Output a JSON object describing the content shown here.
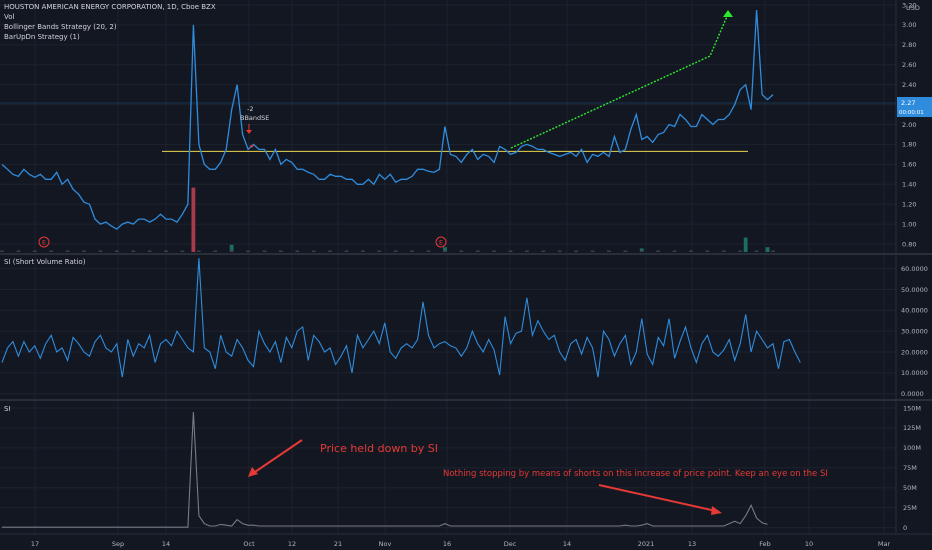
{
  "header": {
    "symbol_line": "HOUSTON AMERICAN ENERGY CORPORATION, 1D, Cboe BZX",
    "studies": [
      "Vol",
      "Bollinger Bands Strategy (20, 2)",
      "BarUpDn Strategy (1)"
    ]
  },
  "price_axis": {
    "currency": "USD",
    "ticks": [
      "3.20",
      "3.00",
      "2.80",
      "2.60",
      "2.40",
      "2.20",
      "2.00",
      "1.80",
      "1.60",
      "1.40",
      "1.20",
      "1.00",
      "0.80"
    ],
    "last_price_label": "2.27",
    "last_price_sub": "00:00:01"
  },
  "price_annotations": {
    "signal_qty": "-2",
    "signal_name": "BBandSE",
    "earnings_marker": "E"
  },
  "panels": {
    "si_ratio": {
      "title": "SI (Short Volume Ratio)",
      "ticks": [
        "60.0000",
        "50.0000",
        "40.0000",
        "30.0000",
        "20.0000",
        "10.0000",
        "0.0000"
      ]
    },
    "si": {
      "title": "SI",
      "ticks": [
        "150M",
        "125M",
        "100M",
        "75M",
        "50M",
        "25M",
        "0"
      ]
    }
  },
  "notes": {
    "note1": "Price held down by SI",
    "note2": "Nothing stopping by means of shorts on this increase of price point. Keep an eye on the SI"
  },
  "time_axis": [
    "17",
    "Sep",
    "14",
    "Oct",
    "12",
    "21",
    "Nov",
    "16",
    "Dec",
    "14",
    "2021",
    "13",
    "Feb",
    "10",
    "Mar"
  ],
  "colors": {
    "background": "#131722",
    "price_line": "#2f8cdc",
    "si_line": "#787b86",
    "yellow_level": "#e8d54d",
    "green_trend": "#2ee82e",
    "red_note": "#e53935",
    "volume_down": "#a83b48",
    "volume_up": "#1d6e62"
  },
  "chart_data": {
    "type": "line",
    "price": [
      1.6,
      1.55,
      1.5,
      1.48,
      1.55,
      1.5,
      1.47,
      1.5,
      1.45,
      1.45,
      1.52,
      1.4,
      1.45,
      1.35,
      1.3,
      1.22,
      1.2,
      1.05,
      1.0,
      1.02,
      0.98,
      0.95,
      1.0,
      1.02,
      1.0,
      1.05,
      1.05,
      1.02,
      1.05,
      1.1,
      1.05,
      1.05,
      1.02,
      1.1,
      1.2,
      3.0,
      1.8,
      1.6,
      1.55,
      1.55,
      1.62,
      1.75,
      2.15,
      2.4,
      1.9,
      1.75,
      1.8,
      1.75,
      1.75,
      1.65,
      1.75,
      1.6,
      1.65,
      1.62,
      1.55,
      1.55,
      1.52,
      1.5,
      1.45,
      1.45,
      1.5,
      1.48,
      1.48,
      1.45,
      1.45,
      1.4,
      1.4,
      1.45,
      1.4,
      1.5,
      1.45,
      1.5,
      1.42,
      1.45,
      1.45,
      1.48,
      1.55,
      1.55,
      1.53,
      1.52,
      1.55,
      1.98,
      1.7,
      1.68,
      1.62,
      1.7,
      1.75,
      1.65,
      1.7,
      1.68,
      1.62,
      1.78,
      1.75,
      1.7,
      1.72,
      1.78,
      1.8,
      1.78,
      1.75,
      1.75,
      1.72,
      1.7,
      1.68,
      1.7,
      1.72,
      1.68,
      1.75,
      1.62,
      1.7,
      1.68,
      1.72,
      1.68,
      1.88,
      1.72,
      1.75,
      1.95,
      2.1,
      1.85,
      1.88,
      1.82,
      1.9,
      1.92,
      2.0,
      1.98,
      2.1,
      2.05,
      1.98,
      1.98,
      2.1,
      2.05,
      2.0,
      2.05,
      2.05,
      2.1,
      2.2,
      2.35,
      2.4,
      2.15,
      3.15,
      2.3,
      2.25,
      2.3
    ],
    "si_ratio": [
      15,
      22,
      25,
      18,
      25,
      20,
      23,
      17,
      24,
      28,
      20,
      22,
      16,
      27,
      24,
      20,
      18,
      25,
      28,
      22,
      20,
      24,
      8,
      26,
      18,
      24,
      22,
      28,
      15,
      24,
      26,
      23,
      30,
      26,
      22,
      20,
      65,
      22,
      20,
      12,
      28,
      20,
      18,
      26,
      22,
      16,
      13,
      30,
      24,
      20,
      25,
      15,
      27,
      22,
      30,
      32,
      16,
      28,
      25,
      20,
      22,
      14,
      18,
      23,
      10,
      28,
      22,
      26,
      30,
      24,
      34,
      20,
      17,
      22,
      24,
      22,
      26,
      44,
      28,
      22,
      24,
      25,
      23,
      22,
      18,
      22,
      30,
      24,
      20,
      26,
      21,
      9,
      37,
      24,
      29,
      30,
      46,
      28,
      35,
      30,
      26,
      28,
      20,
      16,
      24,
      26,
      19,
      27,
      22,
      8,
      30,
      26,
      18,
      24,
      28,
      14,
      20,
      36,
      19,
      14,
      27,
      23,
      36,
      17,
      25,
      32,
      22,
      15,
      24,
      28,
      20,
      18,
      21,
      26,
      16,
      24,
      38,
      20,
      30,
      26,
      22,
      24,
      12,
      25,
      26,
      20,
      15
    ],
    "si": [
      0.5,
      0.5,
      0.5,
      0.5,
      0.5,
      0.5,
      0.5,
      0.5,
      0.5,
      0.5,
      0.5,
      0.5,
      0.5,
      0.5,
      0.5,
      0.5,
      0.5,
      0.5,
      0.5,
      0.5,
      0.5,
      0.5,
      0.5,
      0.5,
      0.5,
      0.5,
      0.5,
      0.5,
      0.5,
      0.5,
      0.5,
      0.5,
      0.5,
      0.5,
      0.5,
      145,
      15,
      5,
      2,
      2,
      4,
      3,
      2,
      10,
      5,
      3,
      3,
      2,
      2,
      2,
      2,
      2,
      2,
      2,
      2,
      2,
      2,
      2,
      2,
      2,
      2,
      2,
      2,
      2,
      2,
      2,
      2,
      2,
      2,
      2,
      2,
      2,
      2,
      2,
      2,
      2,
      2,
      2,
      2,
      2,
      2,
      5,
      2,
      2,
      2,
      2,
      2,
      2,
      2,
      2,
      2,
      2,
      2,
      2,
      2,
      2,
      2,
      2,
      2,
      2,
      2,
      2,
      2,
      2,
      2,
      2,
      2,
      2,
      2,
      2,
      2,
      2,
      2,
      2,
      3,
      2,
      2,
      3,
      5,
      2,
      2,
      2,
      2,
      2,
      2,
      2,
      2,
      2,
      2,
      2,
      2,
      2,
      2,
      5,
      8,
      5,
      15,
      28,
      12,
      6,
      4
    ],
    "volume_down": [
      [
        35,
        28
      ]
    ],
    "volume_up": [
      [
        42,
        6
      ],
      [
        81,
        4
      ],
      [
        117,
        3
      ],
      [
        136,
        12
      ],
      [
        140,
        4
      ]
    ],
    "price_level": 1.73,
    "price_ylim": [
      0.7,
      3.25
    ],
    "si_ratio_ylim": [
      -3,
      67
    ],
    "si_ylim": [
      -8,
      160
    ]
  }
}
